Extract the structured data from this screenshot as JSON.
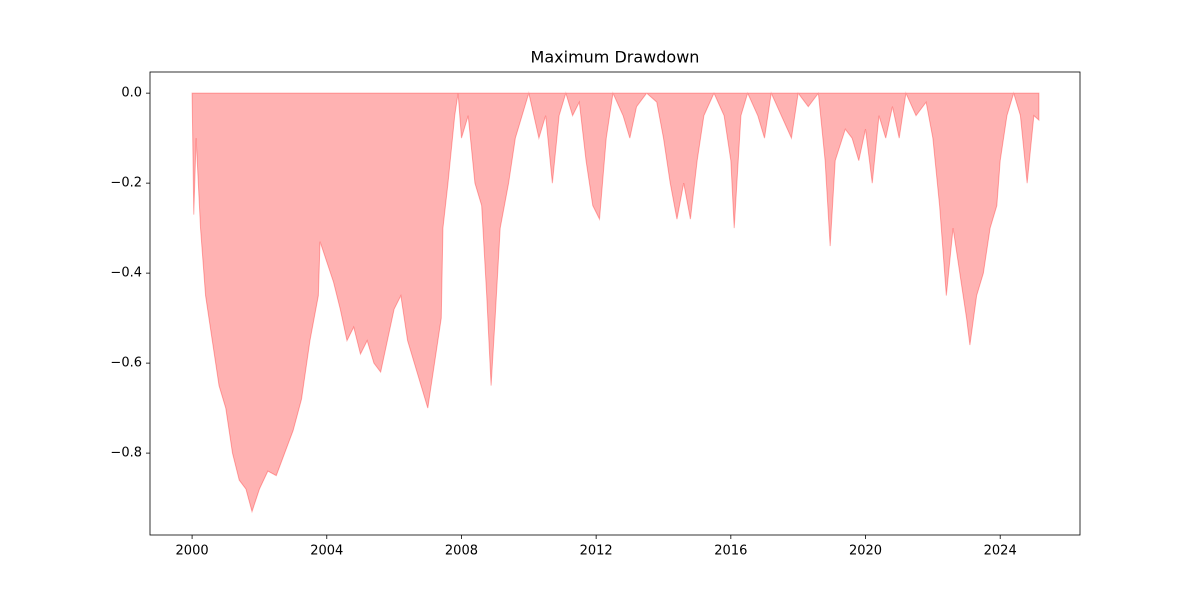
{
  "chart_data": {
    "type": "area",
    "title": "Maximum Drawdown",
    "x": [
      2000.0,
      2000.05,
      2000.12,
      2000.25,
      2000.4,
      2000.6,
      2000.8,
      2001.0,
      2001.2,
      2001.4,
      2001.6,
      2001.78,
      2002.0,
      2002.25,
      2002.5,
      2002.75,
      2003.0,
      2003.25,
      2003.5,
      2003.75,
      2003.8,
      2004.2,
      2004.4,
      2004.6,
      2004.8,
      2005.0,
      2005.2,
      2005.4,
      2005.6,
      2005.8,
      2006.0,
      2006.2,
      2006.4,
      2006.6,
      2006.8,
      2007.0,
      2007.2,
      2007.4,
      2007.45,
      2007.6,
      2007.8,
      2007.9,
      2008.0,
      2008.2,
      2008.4,
      2008.6,
      2008.75,
      2008.88,
      2009.0,
      2009.15,
      2009.4,
      2009.6,
      2009.8,
      2010.0,
      2010.3,
      2010.5,
      2010.7,
      2010.9,
      2011.1,
      2011.3,
      2011.5,
      2011.7,
      2011.9,
      2012.1,
      2012.3,
      2012.5,
      2012.8,
      2013.0,
      2013.2,
      2013.5,
      2013.8,
      2014.0,
      2014.2,
      2014.4,
      2014.6,
      2014.8,
      2015.0,
      2015.2,
      2015.5,
      2015.8,
      2016.0,
      2016.1,
      2016.3,
      2016.5,
      2016.8,
      2017.0,
      2017.2,
      2017.5,
      2017.8,
      2018.0,
      2018.3,
      2018.6,
      2018.8,
      2018.95,
      2019.1,
      2019.4,
      2019.6,
      2019.8,
      2020.0,
      2020.2,
      2020.4,
      2020.6,
      2020.8,
      2021.0,
      2021.2,
      2021.5,
      2021.8,
      2022.0,
      2022.2,
      2022.4,
      2022.6,
      2022.8,
      2023.0,
      2023.1,
      2023.3,
      2023.5,
      2023.7,
      2023.9,
      2024.0,
      2024.2,
      2024.4,
      2024.6,
      2024.8,
      2025.0,
      2025.15
    ],
    "series": [
      {
        "color": "#ff0000",
        "values": [
          0,
          -0.27,
          -0.1,
          -0.3,
          -0.45,
          -0.55,
          -0.65,
          -0.7,
          -0.8,
          -0.86,
          -0.88,
          -0.93,
          -0.88,
          -0.84,
          -0.85,
          -0.8,
          -0.75,
          -0.68,
          -0.55,
          -0.45,
          -0.33,
          -0.42,
          -0.48,
          -0.55,
          -0.52,
          -0.58,
          -0.55,
          -0.6,
          -0.62,
          -0.55,
          -0.48,
          -0.45,
          -0.55,
          -0.6,
          -0.65,
          -0.7,
          -0.6,
          -0.5,
          -0.3,
          -0.2,
          -0.05,
          0,
          -0.1,
          -0.05,
          -0.2,
          -0.25,
          -0.45,
          -0.65,
          -0.5,
          -0.3,
          -0.2,
          -0.1,
          -0.05,
          0,
          -0.1,
          -0.05,
          -0.2,
          -0.05,
          0,
          -0.05,
          -0.02,
          -0.15,
          -0.25,
          -0.28,
          -0.1,
          0,
          -0.05,
          -0.1,
          -0.03,
          0,
          -0.02,
          -0.1,
          -0.2,
          -0.28,
          -0.2,
          -0.28,
          -0.15,
          -0.05,
          0,
          -0.05,
          -0.15,
          -0.3,
          -0.05,
          0,
          -0.05,
          -0.1,
          0,
          -0.05,
          -0.1,
          0,
          -0.03,
          0,
          -0.15,
          -0.34,
          -0.15,
          -0.08,
          -0.1,
          -0.15,
          -0.08,
          -0.2,
          -0.05,
          -0.1,
          -0.03,
          -0.1,
          0,
          -0.05,
          -0.02,
          -0.1,
          -0.25,
          -0.45,
          -0.3,
          -0.4,
          -0.5,
          -0.56,
          -0.45,
          -0.4,
          -0.3,
          -0.25,
          -0.15,
          -0.05,
          0,
          -0.05,
          -0.2,
          -0.05,
          -0.06
        ]
      }
    ],
    "xlim": [
      1998.75,
      2026.37
    ],
    "xticks": [
      2000,
      2004,
      2008,
      2012,
      2016,
      2020,
      2024
    ],
    "ylim": [
      -0.982,
      0.047
    ],
    "yticks": [
      {
        "value": 0,
        "label": "0.0"
      },
      {
        "value": -0.2,
        "label": "−0.2"
      },
      {
        "value": -0.4,
        "label": "−0.4"
      },
      {
        "value": -0.6,
        "label": "−0.6"
      },
      {
        "value": -0.8,
        "label": "−0.8"
      }
    ],
    "grid": false
  }
}
